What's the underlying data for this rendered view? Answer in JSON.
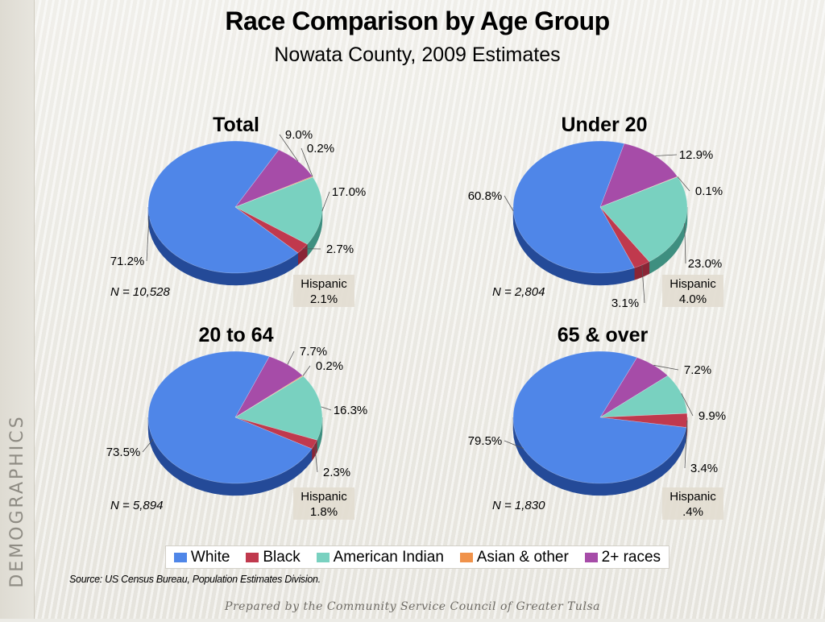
{
  "header": {
    "title": "Race Comparison by Age Group",
    "subtitle": "Nowata County, 2009 Estimates"
  },
  "side_label": "DEMOGRAPHICS",
  "source": "Source:  US Census Bureau, Population Estimates Division.",
  "footer": "Prepared by the Community Service Council of Greater Tulsa",
  "legend": [
    {
      "label": "White",
      "color": "#4f86e8"
    },
    {
      "label": "Black",
      "color": "#c0394d"
    },
    {
      "label": "American Indian",
      "color": "#79d1c0"
    },
    {
      "label": "Asian & other",
      "color": "#f0924a"
    },
    {
      "label": "2+ races",
      "color": "#a64ca8"
    }
  ],
  "chart_data": [
    {
      "type": "pie",
      "title": "Total",
      "n_label": "N = 10,528",
      "hispanic_label": "Hispanic",
      "hispanic_value": "2.1%",
      "categories": [
        "White",
        "Black",
        "American Indian",
        "Asian & other",
        "2+ races"
      ],
      "values": [
        71.2,
        2.7,
        17.0,
        0.2,
        9.0
      ],
      "value_labels": [
        "71.2%",
        "2.7%",
        "17.0%",
        "0.2%",
        "9.0%"
      ]
    },
    {
      "type": "pie",
      "title": "Under 20",
      "n_label": "N = 2,804",
      "hispanic_label": "Hispanic",
      "hispanic_value": "4.0%",
      "categories": [
        "White",
        "Black",
        "American Indian",
        "Asian & other",
        "2+ races"
      ],
      "values": [
        60.8,
        3.1,
        23.0,
        0.1,
        12.9
      ],
      "value_labels": [
        "60.8%",
        "3.1%",
        "23.0%",
        "0.1%",
        "12.9%"
      ]
    },
    {
      "type": "pie",
      "title": "20 to 64",
      "n_label": "N = 5,894",
      "hispanic_label": "Hispanic",
      "hispanic_value": "1.8%",
      "categories": [
        "White",
        "Black",
        "American Indian",
        "Asian & other",
        "2+ races"
      ],
      "values": [
        73.5,
        2.3,
        16.3,
        0.2,
        7.7
      ],
      "value_labels": [
        "73.5%",
        "2.3%",
        "16.3%",
        "0.2%",
        "7.7%"
      ]
    },
    {
      "type": "pie",
      "title": "65 & over",
      "n_label": "N = 1,830",
      "hispanic_label": "Hispanic",
      "hispanic_value": ".4%",
      "categories": [
        "White",
        "Black",
        "American Indian",
        "Asian & other",
        "2+ races"
      ],
      "values": [
        79.5,
        3.4,
        9.9,
        0.0,
        7.2
      ],
      "value_labels": [
        "79.5%",
        "3.4%",
        "9.9%",
        "",
        "7.2%"
      ]
    }
  ]
}
